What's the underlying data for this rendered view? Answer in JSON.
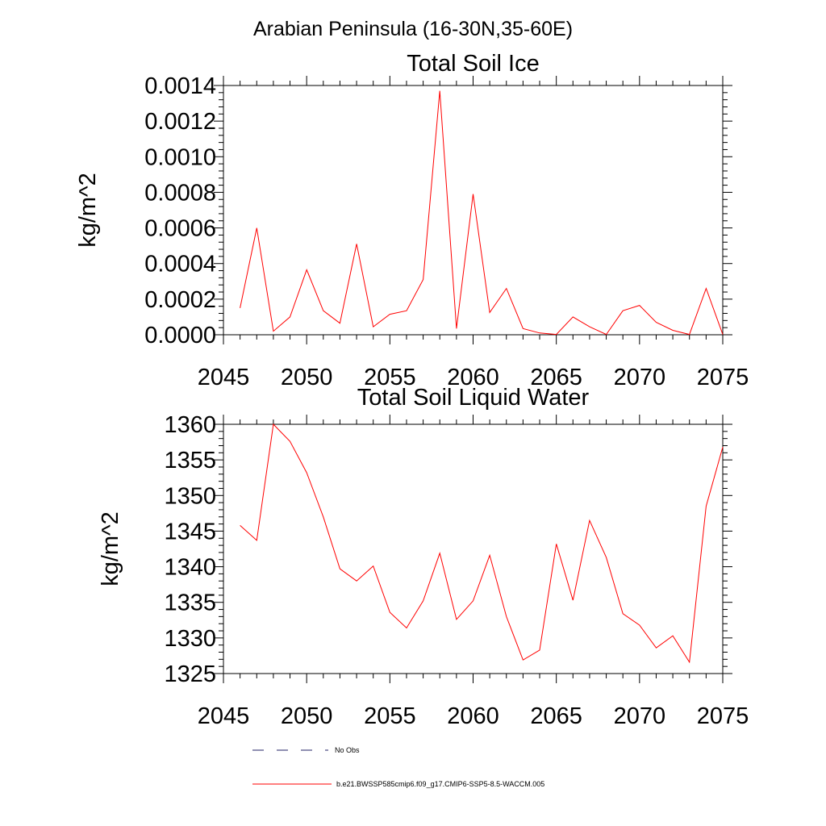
{
  "figure": {
    "title": "Arabian Peninsula (16-30N,35-60E)"
  },
  "chart_data": [
    {
      "type": "line",
      "title": "Total Soil Ice",
      "xlabel": "",
      "ylabel": "kg/m^2",
      "xlim": [
        2045,
        2075
      ],
      "ylim": [
        0,
        0.0014
      ],
      "xticks": [
        2045,
        2050,
        2055,
        2060,
        2065,
        2070,
        2075
      ],
      "xtick_labels": [
        "2045",
        "2050",
        "2055",
        "2060",
        "2065",
        "2070",
        "2075"
      ],
      "yticks": [
        0,
        0.0002,
        0.0004,
        0.0006,
        0.0008,
        0.001,
        0.0012,
        0.0014
      ],
      "ytick_labels": [
        "0.0000",
        "0.0002",
        "0.0004",
        "0.0006",
        "0.0008",
        "0.0010",
        "0.0012",
        "0.0014"
      ],
      "grid": false,
      "series": [
        {
          "color": "#ff0000",
          "x": [
            2046,
            2047,
            2048,
            2049,
            2050,
            2051,
            2052,
            2053,
            2054,
            2055,
            2056,
            2057,
            2058,
            2059,
            2060,
            2061,
            2062,
            2063,
            2064,
            2065,
            2066,
            2067,
            2068,
            2069,
            2070,
            2071,
            2072,
            2073,
            2074,
            2075
          ],
          "values": [
            0.00015,
            0.0006,
            2e-05,
            0.0001,
            0.000365,
            0.000135,
            6.5e-05,
            0.00051,
            4.5e-05,
            0.000115,
            0.000135,
            0.00031,
            0.00137,
            3.5e-05,
            0.00079,
            0.000125,
            0.00026,
            3.5e-05,
            1e-05,
            2e-06,
            0.0001,
            4.5e-05,
            2e-06,
            0.000135,
            0.000165,
            7e-05,
            2.5e-05,
            2e-06,
            0.00026,
            2e-06
          ]
        }
      ]
    },
    {
      "type": "line",
      "title": "Total Soil Liquid Water",
      "xlabel": "",
      "ylabel": "kg/m^2",
      "xlim": [
        2045,
        2075
      ],
      "ylim": [
        1325,
        1360
      ],
      "xticks": [
        2045,
        2050,
        2055,
        2060,
        2065,
        2070,
        2075
      ],
      "xtick_labels": [
        "2045",
        "2050",
        "2055",
        "2060",
        "2065",
        "2070",
        "2075"
      ],
      "yticks": [
        1325,
        1330,
        1335,
        1340,
        1345,
        1350,
        1355,
        1360
      ],
      "ytick_labels": [
        "1325",
        "1330",
        "1335",
        "1340",
        "1345",
        "1350",
        "1355",
        "1360"
      ],
      "grid": false,
      "series": [
        {
          "color": "#ff0000",
          "x": [
            2046,
            2047,
            2048,
            2049,
            2050,
            2051,
            2052,
            2053,
            2054,
            2055,
            2056,
            2057,
            2058,
            2059,
            2060,
            2061,
            2062,
            2063,
            2064,
            2065,
            2066,
            2067,
            2068,
            2069,
            2070,
            2071,
            2072,
            2073,
            2074,
            2075
          ],
          "values": [
            1345.8,
            1343.7,
            1360.0,
            1357.6,
            1353.2,
            1347.0,
            1339.7,
            1338.0,
            1340.1,
            1333.6,
            1331.4,
            1335.2,
            1341.9,
            1332.6,
            1335.2,
            1341.6,
            1333.0,
            1326.9,
            1328.3,
            1343.2,
            1335.3,
            1346.5,
            1341.3,
            1333.4,
            1331.8,
            1328.6,
            1330.3,
            1326.6,
            1348.5,
            1356.8
          ]
        }
      ]
    }
  ],
  "legend": {
    "placement": "bottom-center",
    "items": [
      {
        "label": "No Obs",
        "style": "dashed",
        "color": "#222266"
      },
      {
        "label": "b.e21.BWSSP585cmip6.f09_g17.CMIP6-SSP5-8.5-WACCM.005",
        "style": "solid",
        "color": "#ff0000"
      }
    ]
  }
}
